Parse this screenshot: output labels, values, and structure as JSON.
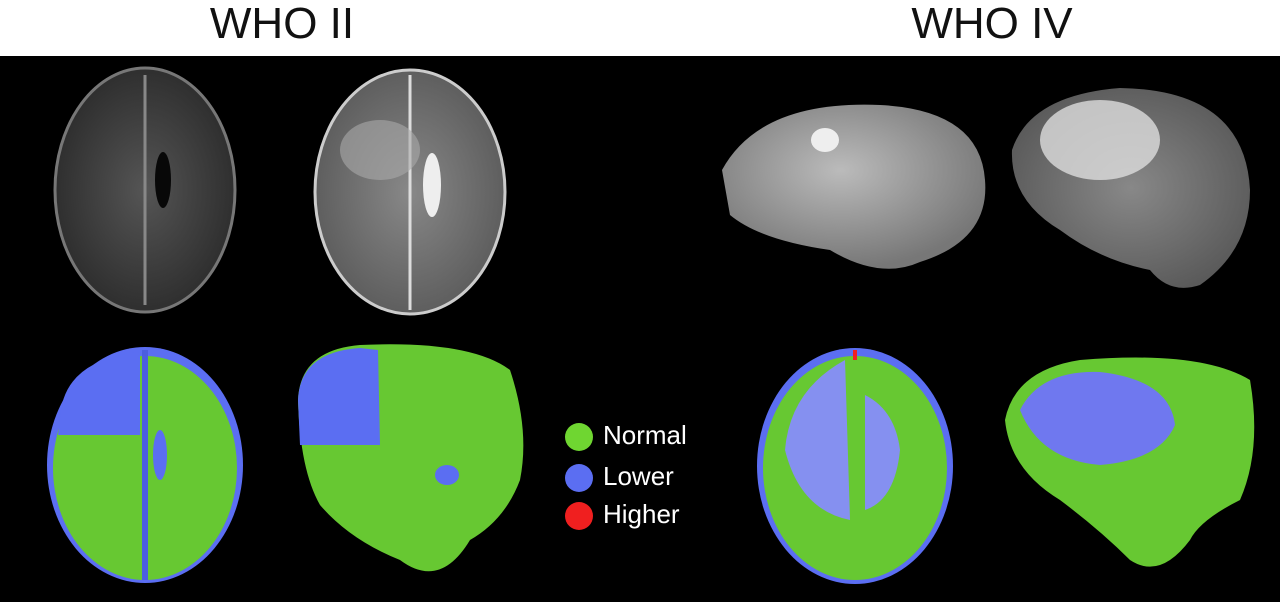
{
  "panels": [
    {
      "title": "WHO II"
    },
    {
      "title": "WHO IV"
    }
  ],
  "legend": [
    {
      "label": "Normal",
      "color": "#6fd631"
    },
    {
      "label": "Lower",
      "color": "#5b6ef2"
    },
    {
      "label": "Higher",
      "color": "#f01f1f"
    }
  ]
}
